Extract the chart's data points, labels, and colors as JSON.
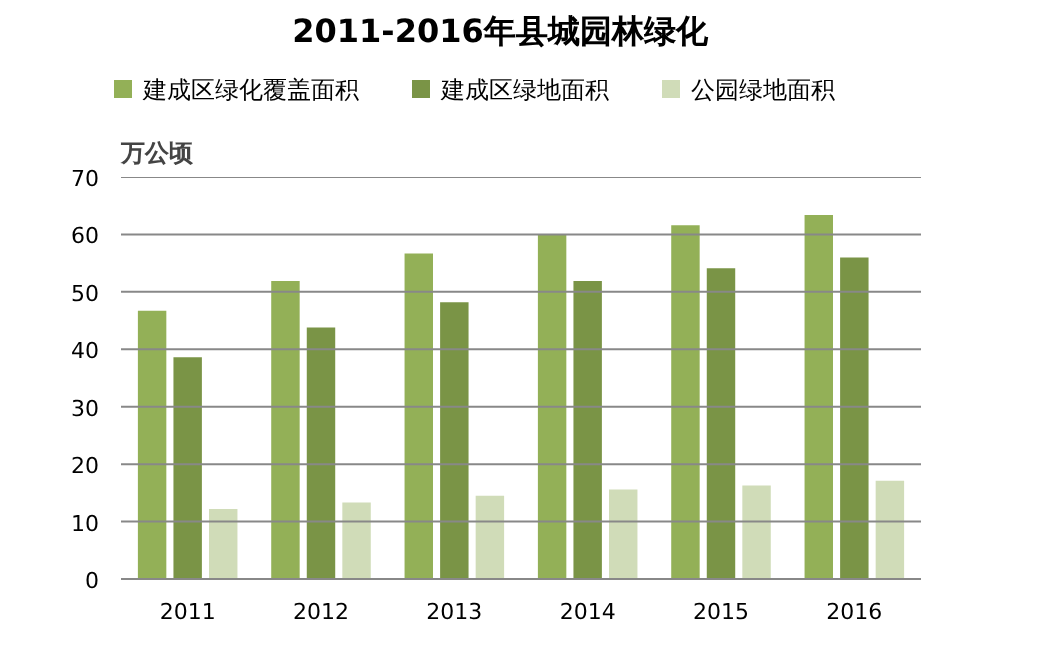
{
  "chart_data": {
    "type": "bar",
    "title": "2011-2016年县城园林绿化",
    "ylabel": "万公顷",
    "categories": [
      "2011",
      "2012",
      "2013",
      "2014",
      "2015",
      "2016"
    ],
    "series": [
      {
        "name": "建成区绿化覆盖面积",
        "color": "#93b057",
        "values": [
          46.7,
          51.9,
          56.7,
          60.0,
          61.6,
          63.4
        ]
      },
      {
        "name": "建成区绿地面积",
        "color": "#7a9446",
        "values": [
          38.6,
          43.8,
          48.2,
          51.9,
          54.1,
          56.0
        ]
      },
      {
        "name": "公园绿地面积",
        "color": "#d0dcb8",
        "values": [
          12.2,
          13.3,
          14.5,
          15.6,
          16.3,
          17.1
        ]
      }
    ],
    "ylim": [
      0,
      70
    ],
    "yticks": [
      0,
      10,
      20,
      30,
      40,
      50,
      60,
      70
    ],
    "grid": "y",
    "legend": "top"
  }
}
